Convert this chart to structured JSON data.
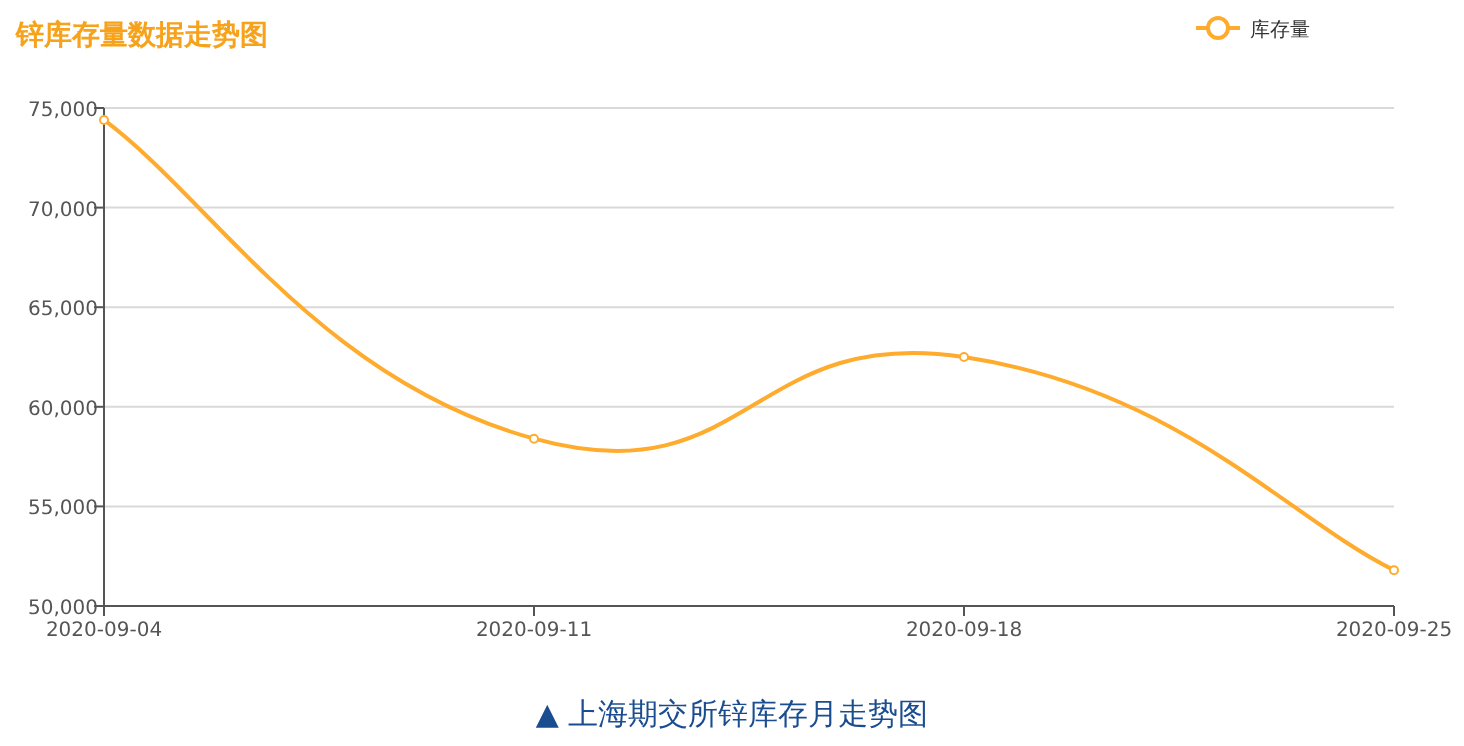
{
  "chart_data": {
    "type": "line",
    "title": "锌库存量数据走势图",
    "categories": [
      "2020-09-04",
      "2020-09-11",
      "2020-09-18",
      "2020-09-25"
    ],
    "series": [
      {
        "name": "库存量",
        "color": "#ffab2e",
        "values": [
          74400,
          58400,
          62500,
          51800
        ]
      }
    ],
    "ylim": [
      50000,
      75000
    ],
    "yticks": [
      {
        "value": 50000,
        "label": "50,000"
      },
      {
        "value": 55000,
        "label": "55,000"
      },
      {
        "value": 60000,
        "label": "60,000"
      },
      {
        "value": 65000,
        "label": "65,000"
      },
      {
        "value": 70000,
        "label": "70,000"
      },
      {
        "value": 75000,
        "label": "75,000"
      }
    ],
    "grid": "y",
    "legend": "top right",
    "marker": "circle",
    "line_style": "solid",
    "annotations": [
      "▲ 上海期交所锌库存月走势图"
    ]
  }
}
